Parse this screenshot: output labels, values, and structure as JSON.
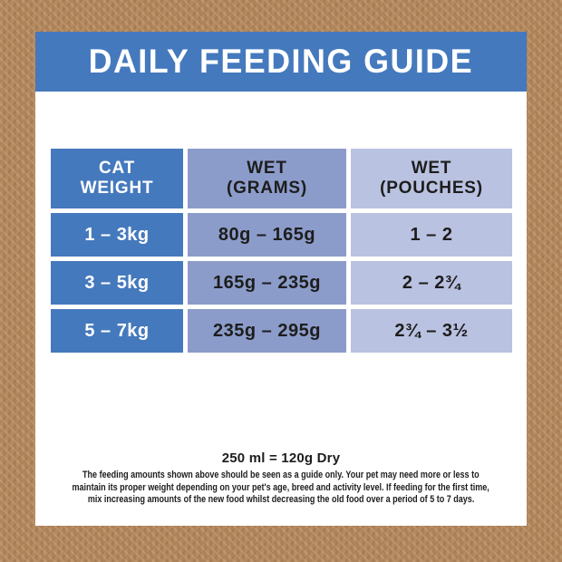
{
  "title": "DAILY FEEDING GUIDE",
  "table": {
    "headers": [
      {
        "line1": "CAT",
        "line2": "WEIGHT"
      },
      {
        "line1": "WET",
        "line2": "(GRAMS)"
      },
      {
        "line1": "WET",
        "line2": "(POUCHES)"
      }
    ],
    "rows": [
      {
        "cat_weight": "1 – 3kg",
        "wet_grams": "80g – 165g",
        "wet_pouches": "1 – 2"
      },
      {
        "cat_weight": "3 – 5kg",
        "wet_grams": "165g – 235g",
        "wet_pouches": "2 – 2¾"
      },
      {
        "cat_weight": "5 – 7kg",
        "wet_grams": "235g – 295g",
        "wet_pouches": "2¾ – 3½"
      }
    ]
  },
  "footer": {
    "equivalence": "250 ml = 120g Dry",
    "note_lines": [
      "The feeding amounts shown above should be seen as a guide only. Your pet may need more or less to",
      "maintain its proper weight depending on your pet's age, breed and activity level. If feeding for the first time,",
      "mix increasing amounts of the new food whilst decreasing the old food over a period of 5 to 7 days."
    ]
  },
  "colors": {
    "banner_blue": "#4579bd",
    "column_wet_grams": "#8c9cca",
    "column_wet_pouches": "#bac2e1",
    "border_brown": "#b3865b",
    "text_dark": "#1d1d1d",
    "text_light": "#ffffff"
  }
}
